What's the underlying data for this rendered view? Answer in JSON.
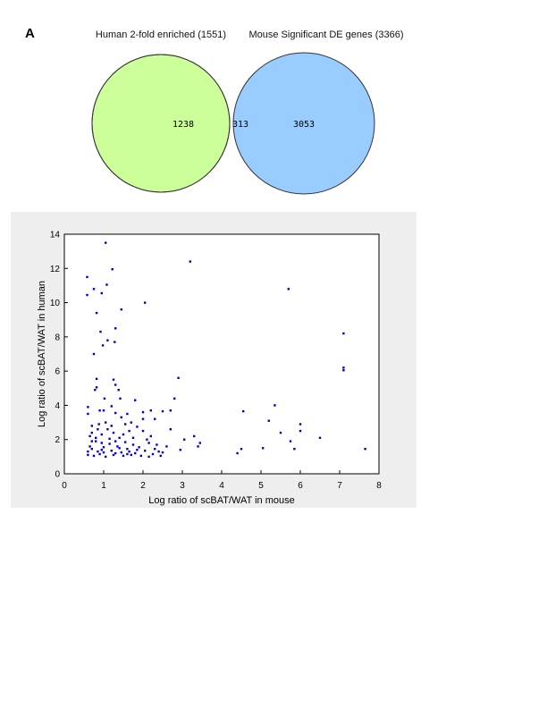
{
  "panel_label": "A",
  "venn": {
    "left_set": {
      "label": "Human 2-fold enriched (1551)",
      "only_count": "1238",
      "color": "#ccff99"
    },
    "right_set": {
      "label": "Mouse Significant DE genes (3366)",
      "only_count": "3053",
      "color": "#99ccff"
    },
    "overlap": {
      "count": "313",
      "color": "#ff6666"
    }
  },
  "colors": {
    "panel_background": "#eeeeee",
    "plot_background": "#ffffff",
    "points": "#0000cc",
    "outline": "#333333"
  },
  "chart_data": {
    "type": "scatter",
    "title": "",
    "xlabel": "Log ratio of scBAT/WAT in mouse",
    "ylabel": "Log ratio of scBAT/WAT in human",
    "xlim": [
      0,
      8
    ],
    "ylim": [
      0,
      14
    ],
    "xticks": [
      0,
      1,
      2,
      3,
      4,
      5,
      6,
      7,
      8
    ],
    "yticks": [
      0,
      2,
      4,
      6,
      8,
      10,
      12,
      14
    ],
    "grid": false,
    "legend": "none",
    "points": [
      [
        1.05,
        13.5
      ],
      [
        3.2,
        12.4
      ],
      [
        1.22,
        11.95
      ],
      [
        0.58,
        11.5
      ],
      [
        1.08,
        11.05
      ],
      [
        0.58,
        10.45
      ],
      [
        0.75,
        10.8
      ],
      [
        5.7,
        10.8
      ],
      [
        0.95,
        10.55
      ],
      [
        2.05,
        10.0
      ],
      [
        1.45,
        9.6
      ],
      [
        0.82,
        9.4
      ],
      [
        1.3,
        8.5
      ],
      [
        0.92,
        8.3
      ],
      [
        7.1,
        8.2
      ],
      [
        1.1,
        7.8
      ],
      [
        1.28,
        7.7
      ],
      [
        0.98,
        7.5
      ],
      [
        7.1,
        6.2
      ],
      [
        7.1,
        6.05
      ],
      [
        0.75,
        7.0
      ],
      [
        1.25,
        5.5
      ],
      [
        1.3,
        5.2
      ],
      [
        1.38,
        4.9
      ],
      [
        2.9,
        5.6
      ],
      [
        0.82,
        5.55
      ],
      [
        0.78,
        4.9
      ],
      [
        0.82,
        5.05
      ],
      [
        1.02,
        4.4
      ],
      [
        1.42,
        4.4
      ],
      [
        2.8,
        4.4
      ],
      [
        0.6,
        3.9
      ],
      [
        1.0,
        3.7
      ],
      [
        1.2,
        3.95
      ],
      [
        1.8,
        4.3
      ],
      [
        0.6,
        3.5
      ],
      [
        0.9,
        3.7
      ],
      [
        1.3,
        3.55
      ],
      [
        1.6,
        3.5
      ],
      [
        2.0,
        3.6
      ],
      [
        2.2,
        3.7
      ],
      [
        2.5,
        3.65
      ],
      [
        2.7,
        3.7
      ],
      [
        4.55,
        3.65
      ],
      [
        5.35,
        4.0
      ],
      [
        5.2,
        3.1
      ],
      [
        6.0,
        2.9
      ],
      [
        5.5,
        2.4
      ],
      [
        6.0,
        2.5
      ],
      [
        6.5,
        2.1
      ],
      [
        5.75,
        1.9
      ],
      [
        5.05,
        1.5
      ],
      [
        5.85,
        1.45
      ],
      [
        4.5,
        1.45
      ],
      [
        4.4,
        1.2
      ],
      [
        7.65,
        1.45
      ],
      [
        3.45,
        1.8
      ],
      [
        3.3,
        2.2
      ],
      [
        3.4,
        1.6
      ],
      [
        3.05,
        2.0
      ],
      [
        2.95,
        1.4
      ],
      [
        2.6,
        1.6
      ],
      [
        2.4,
        1.3
      ],
      [
        2.15,
        1.8
      ],
      [
        2.3,
        3.2
      ],
      [
        1.85,
        2.75
      ],
      [
        1.55,
        2.9
      ],
      [
        1.75,
        2.1
      ],
      [
        1.9,
        1.55
      ],
      [
        2.7,
        2.6
      ],
      [
        2.0,
        3.2
      ],
      [
        1.7,
        3.0
      ],
      [
        1.45,
        3.3
      ],
      [
        0.7,
        2.8
      ],
      [
        0.85,
        2.6
      ],
      [
        0.65,
        2.2
      ],
      [
        0.8,
        1.9
      ],
      [
        0.95,
        2.3
      ],
      [
        1.1,
        2.6
      ],
      [
        1.25,
        2.4
      ],
      [
        1.4,
        2.1
      ],
      [
        1.55,
        1.85
      ],
      [
        1.65,
        2.5
      ],
      [
        1.35,
        1.6
      ],
      [
        1.15,
        1.75
      ],
      [
        0.7,
        1.45
      ],
      [
        0.85,
        1.3
      ],
      [
        1.0,
        1.55
      ],
      [
        1.2,
        1.35
      ],
      [
        1.45,
        1.25
      ],
      [
        1.6,
        1.45
      ],
      [
        1.8,
        1.2
      ],
      [
        2.05,
        1.35
      ],
      [
        2.25,
        1.15
      ],
      [
        2.45,
        1.05
      ],
      [
        0.6,
        1.1
      ],
      [
        0.75,
        1.05
      ],
      [
        0.9,
        1.15
      ],
      [
        1.05,
        1.0
      ],
      [
        1.25,
        1.1
      ],
      [
        1.5,
        1.05
      ],
      [
        1.7,
        1.1
      ],
      [
        1.95,
        1.05
      ],
      [
        2.15,
        1.0
      ],
      [
        0.65,
        1.6
      ],
      [
        0.8,
        2.1
      ],
      [
        0.95,
        1.8
      ],
      [
        1.15,
        2.05
      ],
      [
        1.3,
        1.9
      ],
      [
        1.5,
        2.3
      ],
      [
        1.75,
        1.7
      ],
      [
        2.1,
        2.0
      ],
      [
        2.35,
        1.7
      ],
      [
        2.0,
        2.5
      ],
      [
        2.2,
        2.2
      ],
      [
        0.6,
        1.3
      ],
      [
        0.7,
        1.9
      ],
      [
        1.0,
        1.25
      ],
      [
        1.4,
        1.5
      ],
      [
        1.6,
        1.15
      ],
      [
        2.5,
        1.25
      ],
      [
        0.88,
        2.9
      ],
      [
        1.05,
        3.0
      ],
      [
        1.2,
        2.8
      ],
      [
        0.7,
        2.4
      ],
      [
        1.3,
        1.2
      ],
      [
        1.85,
        1.4
      ],
      [
        2.3,
        1.45
      ],
      [
        1.65,
        1.3
      ],
      [
        0.95,
        1.4
      ]
    ]
  }
}
